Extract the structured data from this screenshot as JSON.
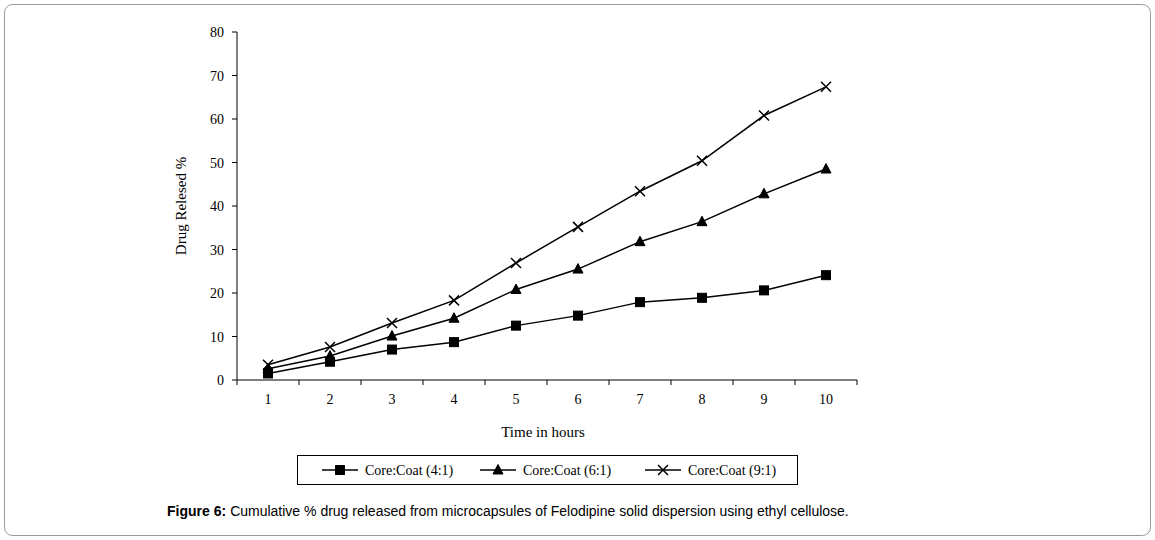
{
  "chart_data": {
    "type": "line",
    "title": "Figure 6:",
    "subtitle": "Cumulative % drug released from microcapsules of Felodipine solid dispersion using ethyl cellulose.",
    "x_label": "Time in hours",
    "y_label": "Drug Relesed %",
    "categories": [
      "1",
      "2",
      "3",
      "4",
      "5",
      "6",
      "7",
      "8",
      "9",
      "10"
    ],
    "series": [
      {
        "name": "Core:Coat (4:1)",
        "color": "#000000",
        "marker": "square",
        "values": [
          1.5,
          4.2,
          7.0,
          8.7,
          12.5,
          14.8,
          17.9,
          18.9,
          20.6,
          24.1
        ]
      },
      {
        "name": "Core:Coat (6:1)",
        "color": "#000000",
        "marker": "triangle",
        "values": [
          2.6,
          5.5,
          10.1,
          14.2,
          20.8,
          25.5,
          31.8,
          36.4,
          42.8,
          48.5
        ]
      },
      {
        "name": "Core:Coat (9:1)",
        "color": "#000000",
        "marker": "x",
        "values": [
          3.5,
          7.6,
          13.1,
          18.3,
          26.9,
          35.2,
          43.4,
          50.4,
          60.8,
          67.4
        ]
      }
    ],
    "ylim": [
      0,
      80
    ],
    "yticks": [
      0,
      10,
      20,
      30,
      40,
      50,
      60,
      70,
      80
    ],
    "grid": false,
    "legend": "bottom"
  }
}
